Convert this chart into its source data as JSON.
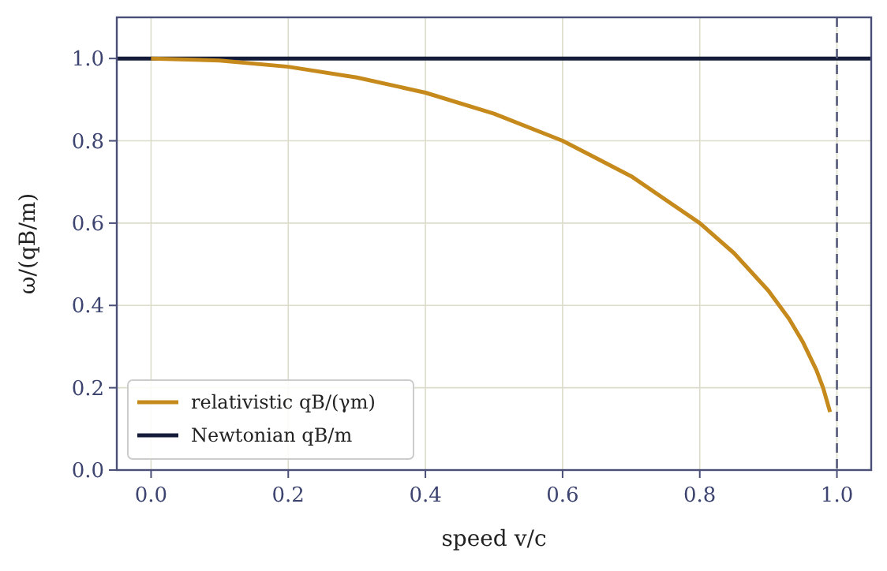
{
  "chart_data": {
    "type": "line",
    "xlabel": "speed v/c",
    "ylabel": "ω/(qB/m)",
    "xlim": [
      -0.05,
      1.05
    ],
    "ylim": [
      0,
      1.1
    ],
    "xticks": [
      {
        "value": 0,
        "label": "0.0"
      },
      {
        "value": 0.2,
        "label": "0.2"
      },
      {
        "value": 0.4,
        "label": "0.4"
      },
      {
        "value": 0.6,
        "label": "0.6"
      },
      {
        "value": 0.8,
        "label": "0.8"
      },
      {
        "value": 1,
        "label": "1.0"
      }
    ],
    "yticks": [
      {
        "value": 0,
        "label": "0.0"
      },
      {
        "value": 0.2,
        "label": "0.2"
      },
      {
        "value": 0.4,
        "label": "0.4"
      },
      {
        "value": 0.6,
        "label": "0.6"
      },
      {
        "value": 0.8,
        "label": "0.8"
      },
      {
        "value": 1,
        "label": "1.0"
      }
    ],
    "series": [
      {
        "name": "relativistic qB/(γm)",
        "color": "#c68a1c",
        "x": [
          0,
          0.1,
          0.2,
          0.3,
          0.4,
          0.5,
          0.6,
          0.7,
          0.8,
          0.85,
          0.9,
          0.93,
          0.95,
          0.97,
          0.98,
          0.99
        ],
        "values": [
          1,
          0.995,
          0.98,
          0.954,
          0.917,
          0.866,
          0.8,
          0.714,
          0.6,
          0.527,
          0.436,
          0.368,
          0.312,
          0.243,
          0.199,
          0.141
        ]
      },
      {
        "name": "Newtonian qB/m",
        "color": "#141c3a",
        "x": [
          -0.05,
          1.05
        ],
        "values": [
          1,
          1
        ]
      }
    ],
    "ref_lines": [
      {
        "axis": "x",
        "value": 1,
        "color": "#555a7a",
        "line_style": "dashed"
      }
    ],
    "grid": true,
    "legend": "bottom left",
    "marker": "none",
    "line_style": "solid"
  }
}
